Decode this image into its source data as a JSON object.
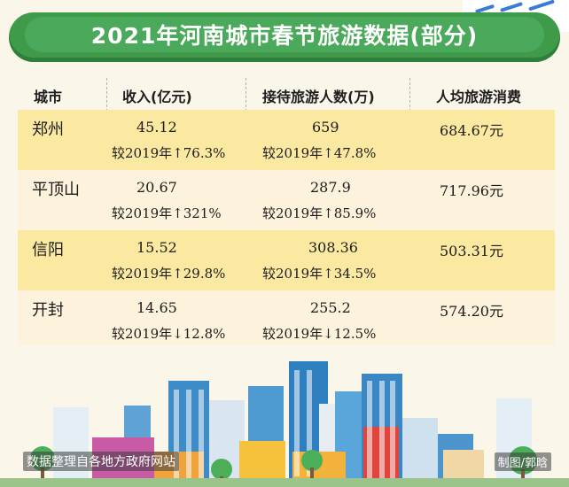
{
  "title": "2021年河南城市春节旅游数据(部分)",
  "headers": {
    "city": "城市",
    "income": "收入(亿元)",
    "visitors": "接待旅游人数(万)",
    "per_capita": "人均旅游消费"
  },
  "rows": [
    {
      "city": "郑州",
      "income": "45.12",
      "income_cmp": "较2019年↑76.3%",
      "visitors": "659",
      "visitors_cmp": "较2019年↑47.8%",
      "per_capita": "684.67元"
    },
    {
      "city": "平顶山",
      "income": "20.67",
      "income_cmp": "较2019年↑321%",
      "visitors": "287.9",
      "visitors_cmp": "较2019年↑85.9%",
      "per_capita": "717.96元"
    },
    {
      "city": "信阳",
      "income": "15.52",
      "income_cmp": "较2019年↑29.8%",
      "visitors": "308.36",
      "visitors_cmp": "较2019年↑34.5%",
      "per_capita": "503.31元"
    },
    {
      "city": "开封",
      "income": "14.65",
      "income_cmp": "较2019年↓12.8%",
      "visitors": "255.2",
      "visitors_cmp": "较2019年↓12.5%",
      "per_capita": "574.20元"
    }
  ],
  "footer": {
    "source": "数据整理自各地方政府网站",
    "credit": "制图/郭晗"
  },
  "colors": {
    "banner": "#3f9a4a",
    "row_highlight": "#fbe9a1",
    "row_plain": "#fdf3dc"
  }
}
